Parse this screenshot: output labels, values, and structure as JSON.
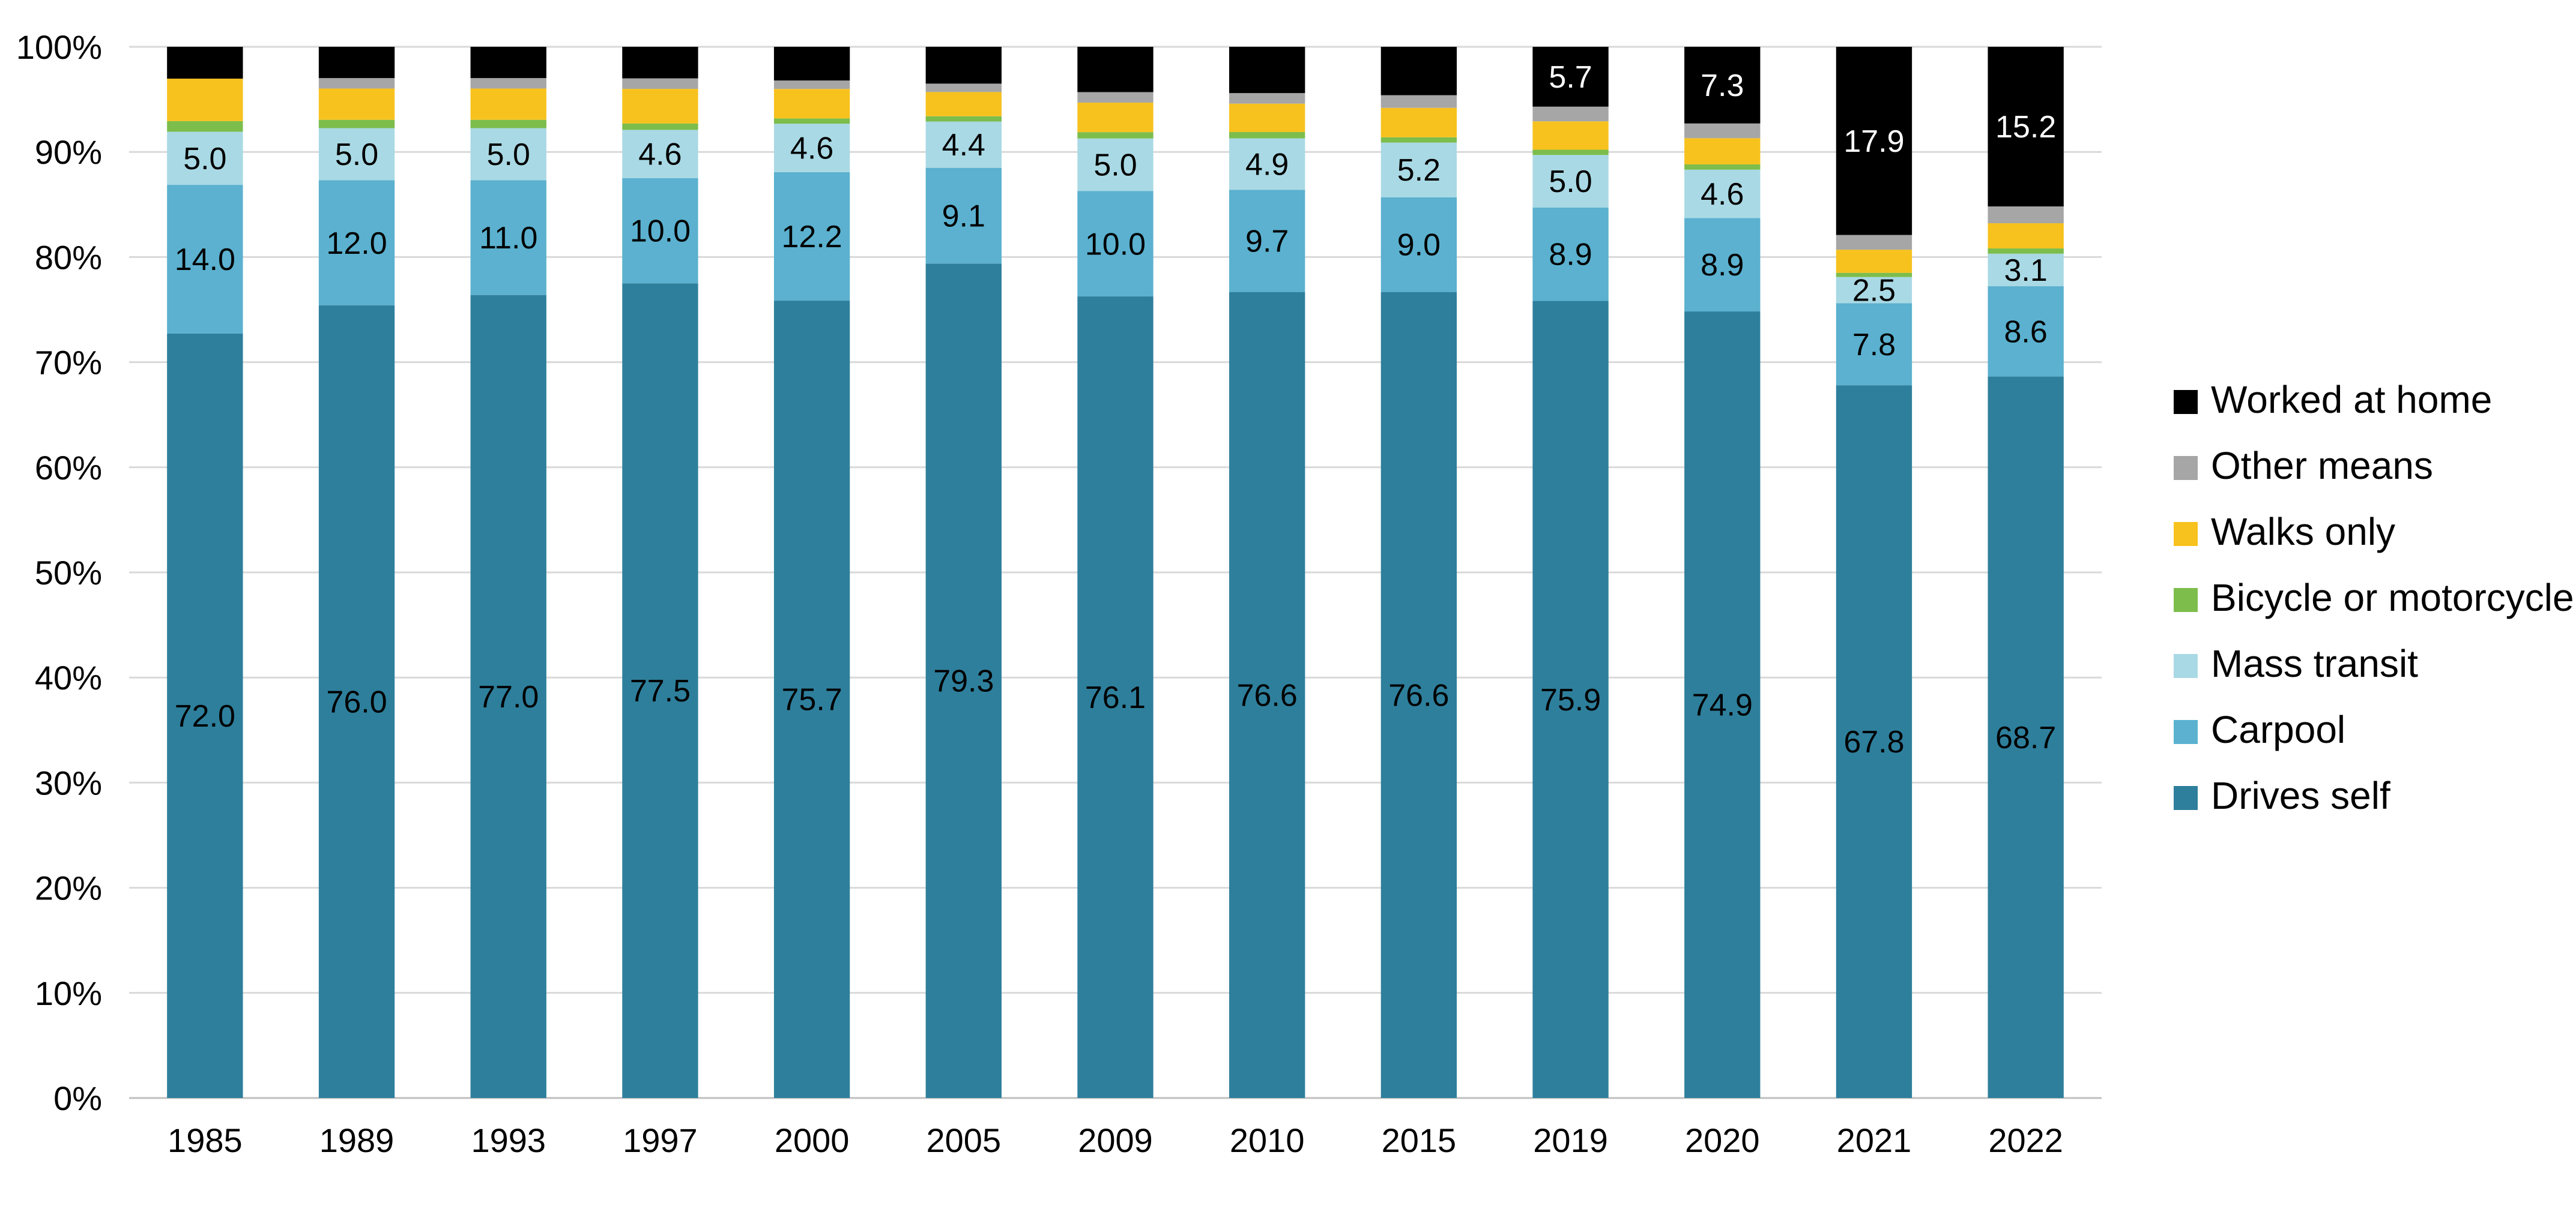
{
  "chart_data": {
    "type": "bar",
    "stacked": true,
    "normalized": true,
    "categories": [
      "1985",
      "1989",
      "1993",
      "1997",
      "2000",
      "2005",
      "2009",
      "2010",
      "2015",
      "2019",
      "2020",
      "2021",
      "2022"
    ],
    "ylim": [
      0,
      100
    ],
    "yticks": [
      "0%",
      "10%",
      "20%",
      "30%",
      "40%",
      "50%",
      "60%",
      "70%",
      "80%",
      "90%",
      "100%"
    ],
    "grid": true,
    "legend_position": "right",
    "title": "",
    "xlabel": "",
    "ylabel": "",
    "series": [
      {
        "name": "Drives self",
        "color": "#2e7f9c",
        "values": [
          72.0,
          76.0,
          77.0,
          77.5,
          75.7,
          79.3,
          76.1,
          76.6,
          76.6,
          75.9,
          74.9,
          67.8,
          68.7
        ],
        "labels": [
          "72.0",
          "76.0",
          "77.0",
          "77.5",
          "75.7",
          "79.3",
          "76.1",
          "76.6",
          "76.6",
          "75.9",
          "74.9",
          "67.8",
          "68.7"
        ],
        "label_color": "#000000"
      },
      {
        "name": "Carpool",
        "color": "#5bb1cf",
        "values": [
          14.0,
          12.0,
          11.0,
          10.0,
          12.2,
          9.1,
          10.0,
          9.7,
          9.0,
          8.9,
          8.9,
          7.8,
          8.6
        ],
        "labels": [
          "14.0",
          "12.0",
          "11.0",
          "10.0",
          "12.2",
          "9.1",
          "10.0",
          "9.7",
          "9.0",
          "8.9",
          "8.9",
          "7.8",
          "8.6"
        ],
        "label_color": "#000000"
      },
      {
        "name": "Mass transit",
        "color": "#a9d9e4",
        "values": [
          5.0,
          5.0,
          5.0,
          4.6,
          4.6,
          4.4,
          5.0,
          4.9,
          5.2,
          5.0,
          4.6,
          2.5,
          3.1
        ],
        "labels": [
          "5.0",
          "5.0",
          "5.0",
          "4.6",
          "4.6",
          "4.4",
          "5.0",
          "4.9",
          "5.2",
          "5.0",
          "4.6",
          "2.5",
          "3.1"
        ],
        "label_color": "#000000"
      },
      {
        "name": "Bicycle or motorcycle",
        "color": "#7cbd4c",
        "values": [
          1.0,
          0.8,
          0.8,
          0.6,
          0.5,
          0.5,
          0.6,
          0.6,
          0.5,
          0.5,
          0.5,
          0.4,
          0.5
        ],
        "labels": [],
        "label_color": "#000000"
      },
      {
        "name": "Walks only",
        "color": "#f7c21e",
        "values": [
          4.0,
          3.0,
          3.0,
          3.3,
          2.8,
          2.3,
          2.8,
          2.7,
          2.8,
          2.7,
          2.5,
          2.2,
          2.4
        ],
        "labels": [],
        "label_color": "#000000"
      },
      {
        "name": "Other means",
        "color": "#a6a6a6",
        "values": [
          0.0,
          1.0,
          1.0,
          1.0,
          0.8,
          0.8,
          1.0,
          1.0,
          1.2,
          1.4,
          1.4,
          1.4,
          1.6
        ],
        "labels": [],
        "label_color": "#000000"
      },
      {
        "name": "Worked at home",
        "color": "#000000",
        "values": [
          3.0,
          3.0,
          3.0,
          3.0,
          3.2,
          3.5,
          4.3,
          4.4,
          4.6,
          5.7,
          7.3,
          17.9,
          15.2
        ],
        "labels": [
          "",
          "",
          "",
          "",
          "",
          "",
          "",
          "",
          "",
          "5.7",
          "7.3",
          "17.9",
          "15.2"
        ],
        "label_color": "#ffffff"
      }
    ]
  }
}
